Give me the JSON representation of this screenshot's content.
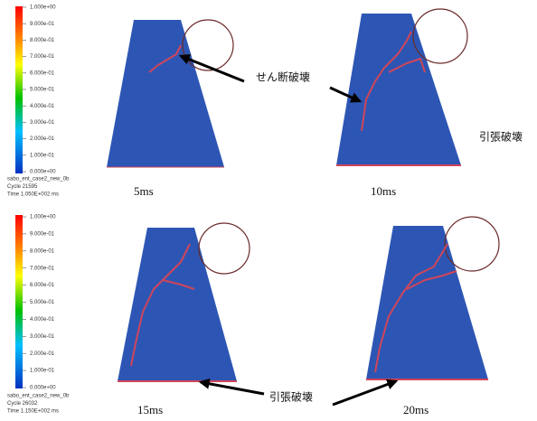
{
  "legends": [
    {
      "ticks": [
        "1.000e+00",
        "9.000e-01",
        "8.000e-01",
        "7.000e-01",
        "6.000e-01",
        "5.000e-01",
        "4.000e-01",
        "3.000e-01",
        "2.000e-01",
        "1.000e-01",
        "0.000e+00"
      ],
      "model": "sabo_ent_case2_new_0b",
      "cycle": "Cycle 21595",
      "time": "Time 1.050E+002 ms"
    },
    {
      "ticks": [
        "1.000e+00",
        "9.000e-01",
        "8.000e-01",
        "7.000e-01",
        "6.000e-01",
        "5.000e-01",
        "4.000e-01",
        "3.000e-01",
        "2.000e-01",
        "1.000e-01",
        "0.000e+00"
      ],
      "model": "sabo_ent_case2_new_0b",
      "cycle": "Cycle 26032",
      "time": "Time 1.150E+002 ms"
    }
  ],
  "panels": [
    {
      "label": "5ms"
    },
    {
      "label": "10ms"
    },
    {
      "label": "15ms"
    },
    {
      "label": "20ms"
    }
  ],
  "annotations": {
    "shear": "せん断破壊",
    "tension_top": "引張破壊",
    "tension_bottom": "引張破壊"
  }
}
